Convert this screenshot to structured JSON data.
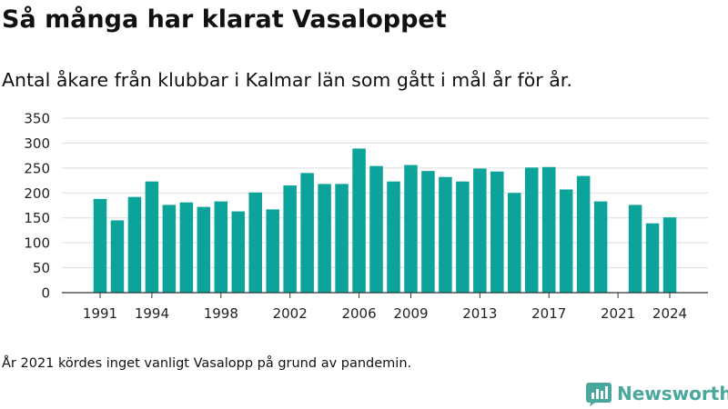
{
  "title": "Så många har klarat Vasaloppet",
  "subtitle": "Antal åkare från klubbar i Kalmar län som gått i mål år för år.",
  "footnote": "År 2021 kördes inget vanligt Vasalopp på grund av pandemin.",
  "brand": {
    "name": "Newsworthy",
    "color": "#4aa79b"
  },
  "colors": {
    "bar": "#0ba39a",
    "grid": "#dddddd",
    "axis": "#333333"
  },
  "chart_data": {
    "type": "bar",
    "x": [
      1991,
      1992,
      1993,
      1994,
      1995,
      1996,
      1997,
      1998,
      1999,
      2000,
      2001,
      2002,
      2003,
      2004,
      2005,
      2006,
      2007,
      2008,
      2009,
      2010,
      2011,
      2012,
      2013,
      2014,
      2015,
      2016,
      2017,
      2018,
      2019,
      2020,
      2021,
      2022,
      2023,
      2024
    ],
    "values": [
      188,
      145,
      192,
      223,
      176,
      181,
      172,
      183,
      163,
      201,
      167,
      215,
      240,
      218,
      218,
      289,
      254,
      223,
      256,
      244,
      232,
      223,
      249,
      243,
      200,
      251,
      252,
      207,
      234,
      183,
      0,
      176,
      139,
      151
    ],
    "x_ticks": [
      1991,
      1994,
      1998,
      2002,
      2006,
      2009,
      2013,
      2017,
      2021,
      2024
    ],
    "y_ticks": [
      0,
      50,
      100,
      150,
      200,
      250,
      300,
      350
    ],
    "ylim": [
      0,
      350
    ],
    "xlabel": "",
    "ylabel": "",
    "grid": true,
    "legend": "none"
  }
}
